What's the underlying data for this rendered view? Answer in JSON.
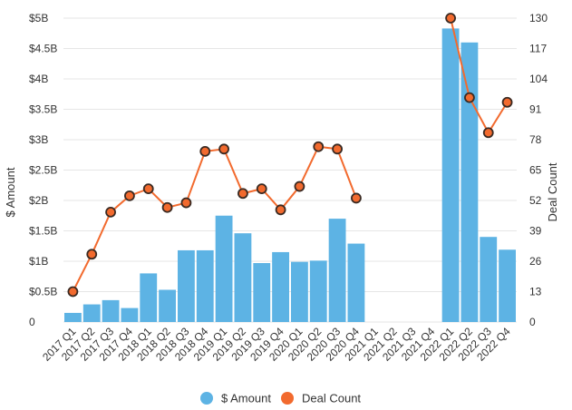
{
  "chart_data": {
    "type": "bar",
    "categories": [
      "2017 Q1",
      "2017 Q2",
      "2017 Q3",
      "2017 Q4",
      "2018 Q1",
      "2018 Q2",
      "2018 Q3",
      "2018 Q4",
      "2019 Q1",
      "2019 Q2",
      "2019 Q3",
      "2019 Q4",
      "2020 Q1",
      "2020 Q2",
      "2020 Q3",
      "2020 Q4",
      "2021 Q1",
      "2021 Q2",
      "2021 Q3",
      "2021 Q4",
      "2022 Q1",
      "2022 Q2",
      "2022 Q3",
      "2022 Q4"
    ],
    "series": [
      {
        "name": "$ Amount",
        "type": "bar",
        "axis": "left",
        "color": "#5DB3E4",
        "values": [
          0.15,
          0.29,
          0.36,
          0.23,
          0.8,
          0.53,
          1.18,
          1.18,
          1.75,
          1.46,
          0.97,
          1.15,
          0.99,
          1.01,
          1.7,
          1.29,
          null,
          null,
          null,
          null,
          4.83,
          4.6,
          1.4,
          1.19
        ]
      },
      {
        "name": "Deal Count",
        "type": "line",
        "axis": "right",
        "color": "#F26A2E",
        "values": [
          13,
          29,
          47,
          54,
          57,
          49,
          51,
          73,
          74,
          55,
          57,
          48,
          58,
          75,
          74,
          53,
          null,
          null,
          null,
          null,
          130,
          96,
          81,
          94
        ]
      }
    ],
    "y_left": {
      "label": "$ Amount",
      "min": 0,
      "max": 5,
      "tick_values": [
        0,
        0.5,
        1,
        1.5,
        2,
        2.5,
        3,
        3.5,
        4,
        4.5,
        5
      ],
      "ticks": [
        "0",
        "$0.5B",
        "$1B",
        "$1.5B",
        "$2B",
        "$2.5B",
        "$3B",
        "$3.5B",
        "$4B",
        "$4.5B",
        "$5B"
      ]
    },
    "y_right": {
      "label": "Deal Count",
      "min": 0,
      "max": 130,
      "tick_values": [
        0,
        13,
        26,
        39,
        52,
        65,
        78,
        91,
        104,
        117,
        130
      ],
      "ticks": [
        "0",
        "13",
        "26",
        "39",
        "52",
        "65",
        "78",
        "91",
        "104",
        "117",
        "130"
      ]
    },
    "legend": {
      "position": "bottom",
      "items": [
        "$ Amount",
        "Deal Count"
      ]
    },
    "grid": true
  }
}
